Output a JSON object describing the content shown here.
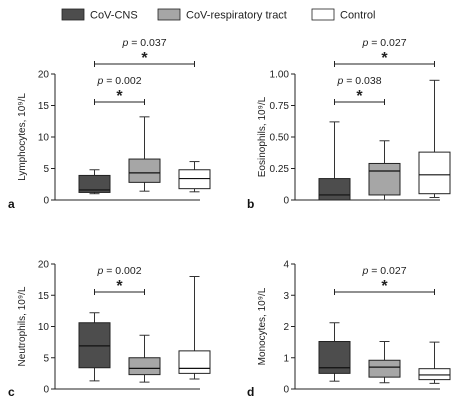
{
  "legend": [
    {
      "label": "CoV-CNS",
      "color": "#4d4d4d"
    },
    {
      "label": "CoV-respiratory tract",
      "color": "#a6a6a6"
    },
    {
      "label": "Control",
      "color": "#ffffff"
    }
  ],
  "chart_data": [
    {
      "type": "box",
      "panel": "a",
      "ylabel": "Lymphocytes, 10⁹/L",
      "ylim": [
        0,
        20
      ],
      "yticks": [
        0,
        5,
        10,
        15,
        20
      ],
      "ytick_labels": [
        "0",
        "5",
        "10",
        "15",
        "20"
      ],
      "series": [
        {
          "name": "CoV-CNS",
          "whisker_low": 1.0,
          "q1": 1.2,
          "median": 1.6,
          "q3": 3.9,
          "whisker_high": 4.8,
          "color": "#4d4d4d"
        },
        {
          "name": "CoV-respiratory tract",
          "whisker_low": 1.4,
          "q1": 2.8,
          "median": 4.3,
          "q3": 6.5,
          "whisker_high": 13.2,
          "color": "#a6a6a6"
        },
        {
          "name": "Control",
          "whisker_low": 1.3,
          "q1": 1.8,
          "median": 3.4,
          "q3": 4.8,
          "whisker_high": 6.1,
          "color": "#ffffff"
        }
      ],
      "comparisons": [
        {
          "from": 0,
          "to": 1,
          "p": "p = 0.002",
          "marker": "*"
        },
        {
          "from": 0,
          "to": 2,
          "p": "p = 0.037",
          "marker": "*"
        }
      ]
    },
    {
      "type": "box",
      "panel": "b",
      "ylabel": "Eosinophils, 10⁹/L",
      "ylim": [
        0,
        1.0
      ],
      "yticks": [
        0,
        0.25,
        0.5,
        0.75,
        1.0
      ],
      "ytick_labels": [
        "0",
        "0.25",
        "0.50",
        "0.75",
        "1.00"
      ],
      "series": [
        {
          "name": "CoV-CNS",
          "whisker_low": 0.0,
          "q1": 0.0,
          "median": 0.04,
          "q3": 0.17,
          "whisker_high": 0.62,
          "color": "#4d4d4d"
        },
        {
          "name": "CoV-respiratory tract",
          "whisker_low": 0.0,
          "q1": 0.04,
          "median": 0.23,
          "q3": 0.29,
          "whisker_high": 0.47,
          "color": "#a6a6a6"
        },
        {
          "name": "Control",
          "whisker_low": 0.02,
          "q1": 0.05,
          "median": 0.2,
          "q3": 0.38,
          "whisker_high": 0.95,
          "color": "#ffffff"
        }
      ],
      "comparisons": [
        {
          "from": 0,
          "to": 1,
          "p": "p = 0.038",
          "marker": "*"
        },
        {
          "from": 0,
          "to": 2,
          "p": "p = 0.027",
          "marker": "*"
        }
      ]
    },
    {
      "type": "box",
      "panel": "c",
      "ylabel": "Neutrophils, 10⁹/L",
      "ylim": [
        0,
        20
      ],
      "yticks": [
        0,
        5,
        10,
        15,
        20
      ],
      "ytick_labels": [
        "0",
        "5",
        "10",
        "15",
        "20"
      ],
      "series": [
        {
          "name": "CoV-CNS",
          "whisker_low": 1.3,
          "q1": 3.4,
          "median": 6.9,
          "q3": 10.6,
          "whisker_high": 12.2,
          "color": "#4d4d4d"
        },
        {
          "name": "CoV-respiratory tract",
          "whisker_low": 1.1,
          "q1": 2.3,
          "median": 3.3,
          "q3": 5.0,
          "whisker_high": 8.6,
          "color": "#a6a6a6"
        },
        {
          "name": "Control",
          "whisker_low": 1.6,
          "q1": 2.5,
          "median": 3.3,
          "q3": 6.1,
          "whisker_high": 18.0,
          "color": "#ffffff"
        }
      ],
      "comparisons": [
        {
          "from": 0,
          "to": 1,
          "p": "p = 0.002",
          "marker": "*"
        }
      ]
    },
    {
      "type": "box",
      "panel": "d",
      "ylabel": "Monocytes, 10⁹/L",
      "ylim": [
        0,
        4
      ],
      "yticks": [
        0,
        1,
        2,
        3,
        4
      ],
      "ytick_labels": [
        "0",
        "1",
        "2",
        "3",
        "4"
      ],
      "series": [
        {
          "name": "CoV-CNS",
          "whisker_low": 0.25,
          "q1": 0.5,
          "median": 0.68,
          "q3": 1.52,
          "whisker_high": 2.12,
          "color": "#4d4d4d"
        },
        {
          "name": "CoV-respiratory tract",
          "whisker_low": 0.2,
          "q1": 0.38,
          "median": 0.7,
          "q3": 0.92,
          "whisker_high": 1.52,
          "color": "#a6a6a6"
        },
        {
          "name": "Control",
          "whisker_low": 0.18,
          "q1": 0.3,
          "median": 0.45,
          "q3": 0.65,
          "whisker_high": 1.5,
          "color": "#ffffff"
        }
      ],
      "comparisons": [
        {
          "from": 0,
          "to": 2,
          "p": "p = 0.027",
          "marker": "*"
        }
      ]
    }
  ]
}
